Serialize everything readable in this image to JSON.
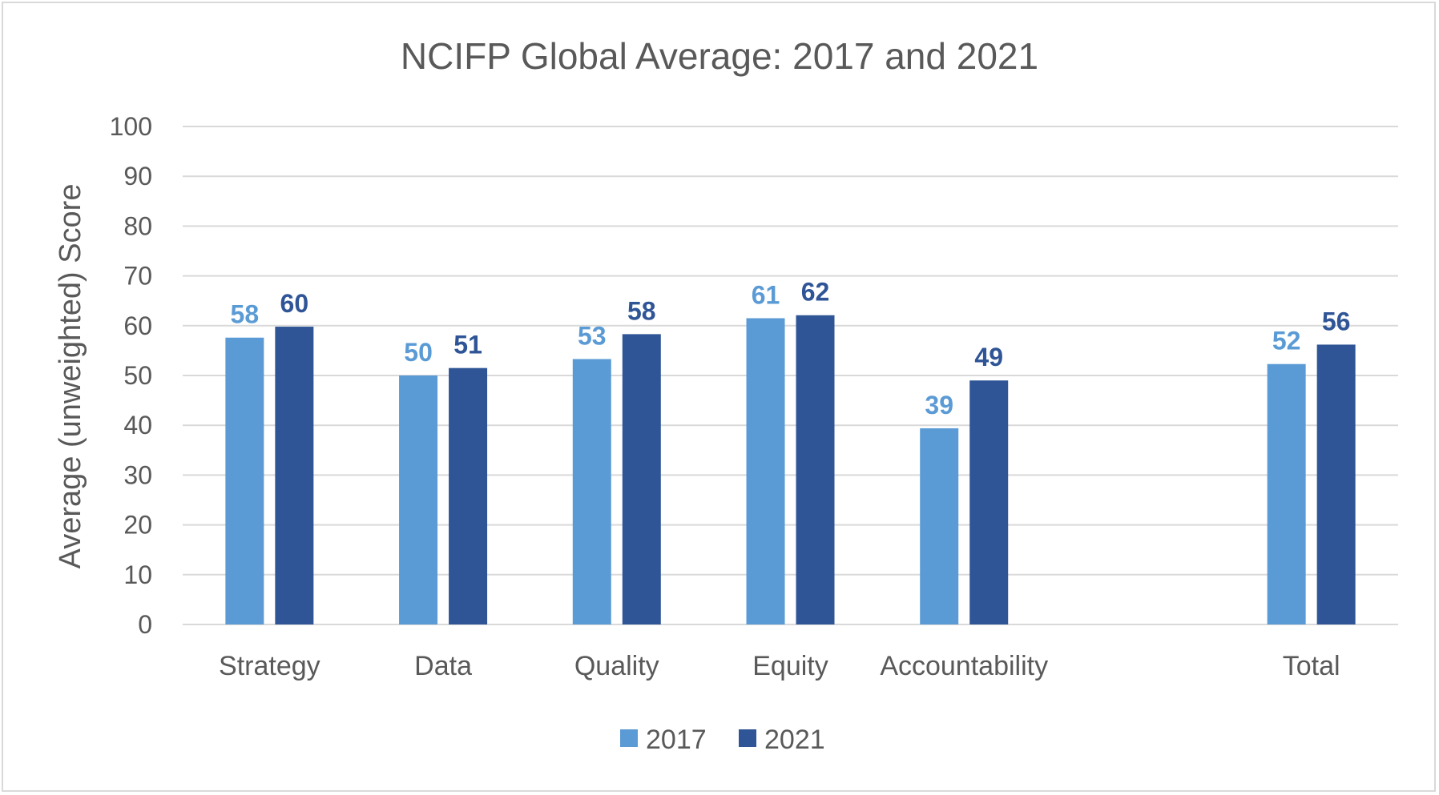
{
  "chart_data": {
    "type": "bar",
    "title": "NCIFP Global Average: 2017 and 2021",
    "xlabel": "",
    "ylabel": "Average (unweighted) Score",
    "ylim": [
      0,
      100
    ],
    "yticks": [
      0,
      10,
      20,
      30,
      40,
      50,
      60,
      70,
      80,
      90,
      100
    ],
    "grid": true,
    "legend_position": "bottom",
    "categories": [
      "Strategy",
      "Data",
      "Quality",
      "Equity",
      "Accountability",
      "",
      "Total"
    ],
    "series": [
      {
        "name": "2017",
        "color": "#5b9bd5",
        "values": [
          57.6,
          50.0,
          53.3,
          61.5,
          39.4,
          null,
          52.3
        ],
        "labels": [
          "58",
          "50",
          "53",
          "61",
          "39",
          "",
          "52"
        ]
      },
      {
        "name": "2021",
        "color": "#2f5597",
        "values": [
          59.8,
          51.5,
          58.3,
          62.1,
          49.0,
          null,
          56.2
        ],
        "labels": [
          "60",
          "51",
          "58",
          "62",
          "49",
          "",
          "56"
        ]
      }
    ]
  }
}
